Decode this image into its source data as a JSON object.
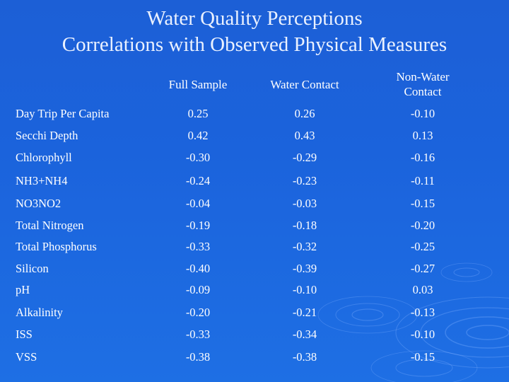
{
  "title": {
    "line1": "Water Quality Perceptions",
    "line2": "Correlations with Observed Physical Measures"
  },
  "table": {
    "columns": [
      "Full Sample",
      "Water Contact",
      "Non-Water Contact"
    ],
    "column_lines": [
      [
        "Full Sample"
      ],
      [
        "Water Contact"
      ],
      [
        "Non-Water",
        "Contact"
      ]
    ],
    "rows": [
      {
        "label": "Day Trip Per Capita",
        "values": [
          "0.25",
          "0.26",
          "-0.10"
        ]
      },
      {
        "label": "Secchi Depth",
        "values": [
          "0.42",
          "0.43",
          "0.13"
        ]
      },
      {
        "label": "Chlorophyll",
        "values": [
          "-0.30",
          "-0.29",
          "-0.16"
        ]
      },
      {
        "label": "NH3+NH4",
        "values": [
          "-0.24",
          "-0.23",
          "-0.11"
        ]
      },
      {
        "label": "NO3NO2",
        "values": [
          "-0.04",
          "-0.03",
          "-0.15"
        ]
      },
      {
        "label": "Total Nitrogen",
        "values": [
          "-0.19",
          "-0.18",
          "-0.20"
        ]
      },
      {
        "label": "Total Phosphorus",
        "values": [
          "-0.33",
          "-0.32",
          "-0.25"
        ]
      },
      {
        "label": "Silicon",
        "values": [
          "-0.40",
          "-0.39",
          "-0.27"
        ]
      },
      {
        "label": "pH",
        "values": [
          "-0.09",
          "-0.10",
          "0.03"
        ]
      },
      {
        "label": "Alkalinity",
        "values": [
          "-0.20",
          "-0.21",
          "-0.13"
        ]
      },
      {
        "label": "ISS",
        "values": [
          "-0.33",
          "-0.34",
          "-0.10"
        ]
      },
      {
        "label": "VSS",
        "values": [
          "-0.38",
          "-0.38",
          "-0.15"
        ]
      }
    ]
  },
  "colors": {
    "background": "#1b63dc",
    "text": "#ffffff",
    "ripple": "#7fb0ff"
  }
}
